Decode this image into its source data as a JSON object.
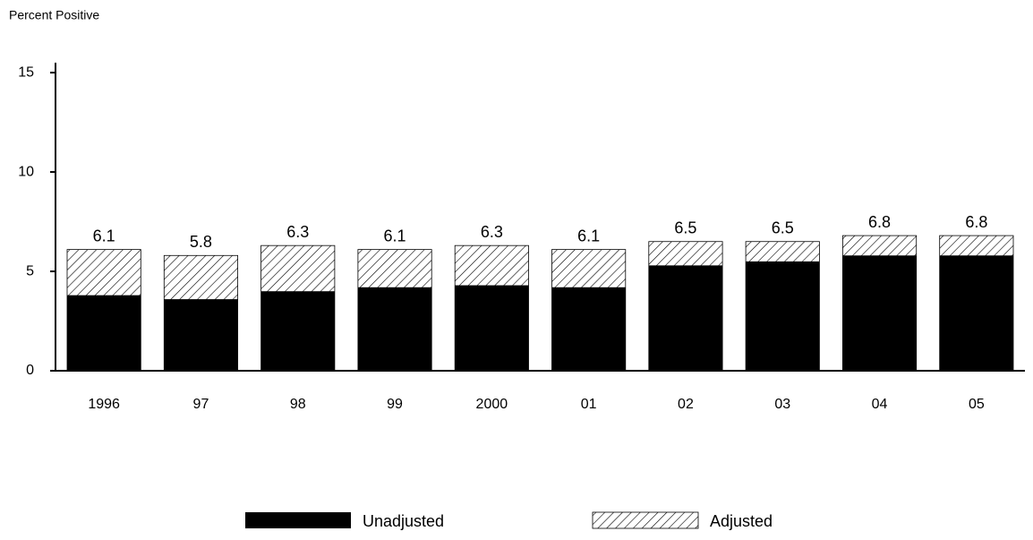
{
  "chart_data": {
    "type": "bar",
    "y_label": "Percent Positive",
    "categories": [
      "1996",
      "97",
      "98",
      "99",
      "2000",
      "01",
      "02",
      "03",
      "04",
      "05"
    ],
    "series": [
      {
        "name": "Unadjusted",
        "color": "#000000",
        "fill": "solid",
        "values": [
          3.8,
          3.6,
          4.0,
          4.2,
          4.3,
          4.2,
          5.3,
          5.5,
          5.8,
          5.8
        ]
      },
      {
        "name": "Adjusted",
        "color": "#000000",
        "fill": "hatch",
        "values": [
          6.1,
          5.8,
          6.3,
          6.1,
          6.3,
          6.1,
          6.5,
          6.5,
          6.8,
          6.8
        ],
        "data_labels": true
      }
    ],
    "overlap": true,
    "ylim": [
      0,
      15.5
    ],
    "yticks": [
      0,
      5,
      10,
      15
    ],
    "grid": false,
    "legend": "bottom"
  }
}
